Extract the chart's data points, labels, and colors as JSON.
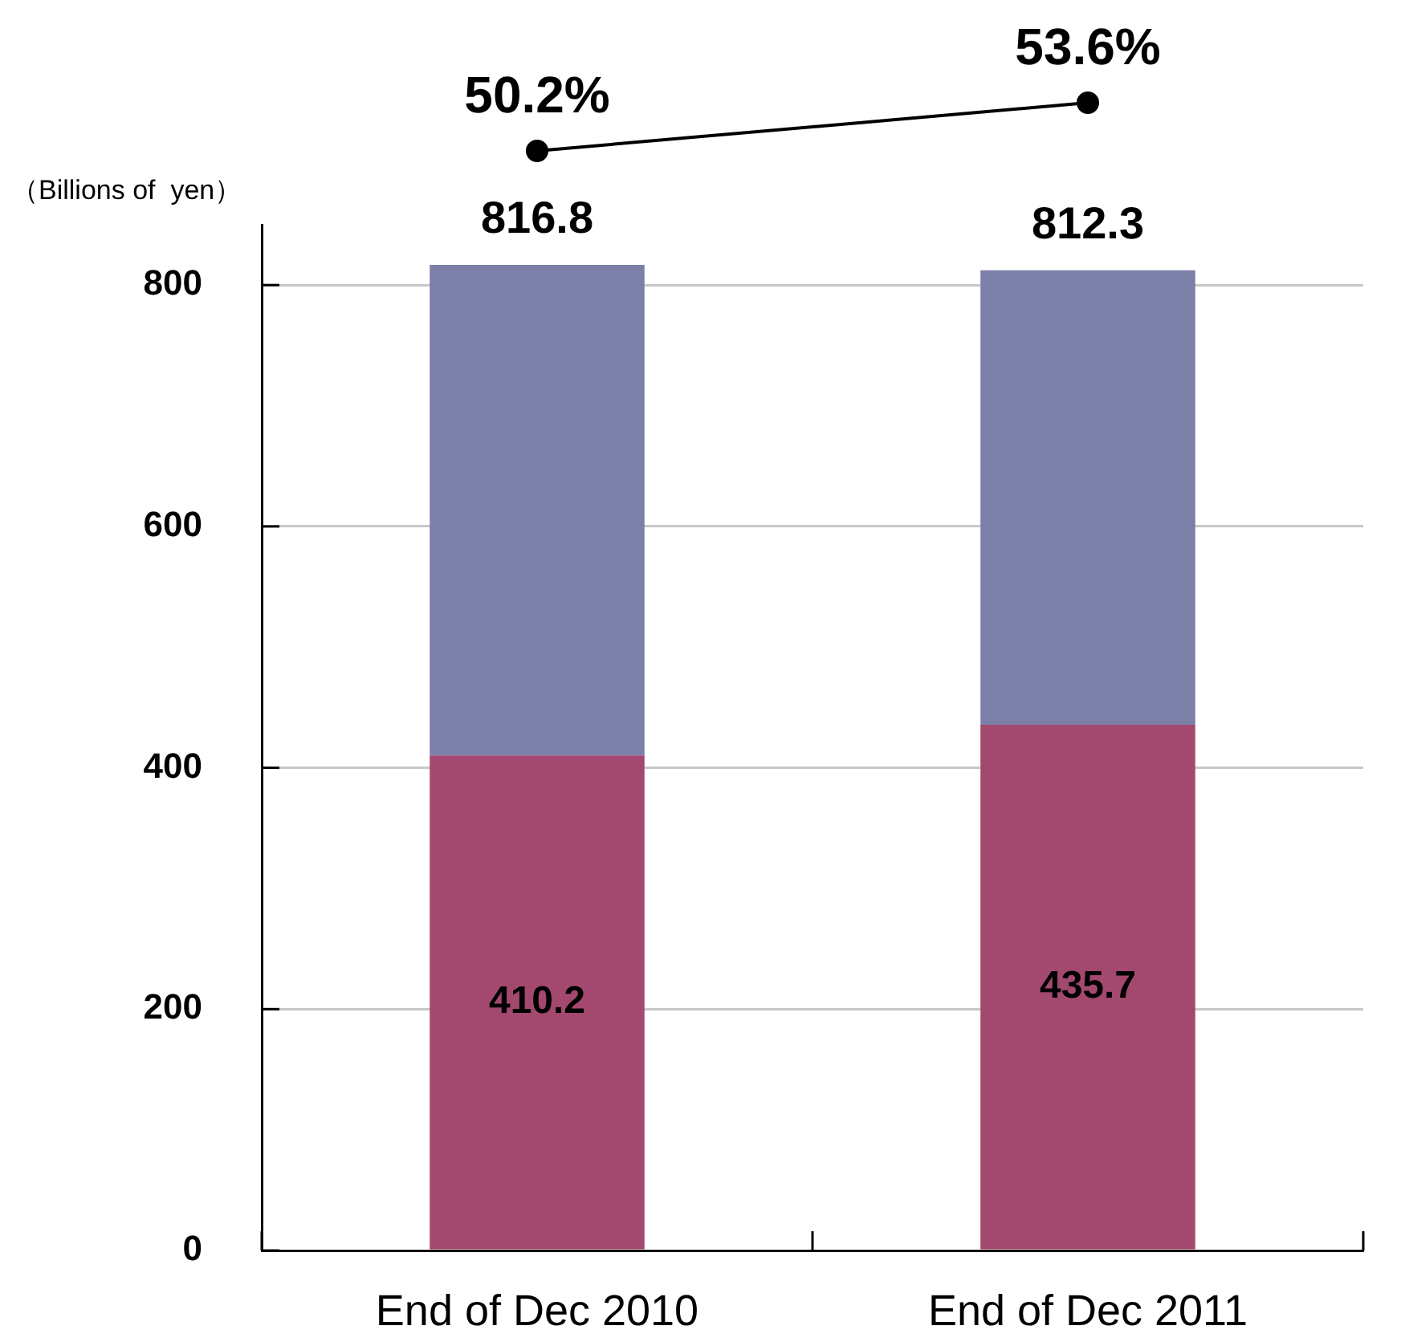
{
  "chart_data": [
    {
      "type": "line",
      "categories": [
        null,
        null
      ],
      "series": [
        {
          "color": "#000000",
          "values": [
            50.2,
            53.6
          ],
          "value_labels": [
            "50.2%",
            "53.6%"
          ]
        }
      ],
      "marker": "circle",
      "line_style": "solid"
    },
    {
      "type": "bar",
      "stacked": true,
      "ylabel": "（Billions of  yen）",
      "categories": [
        "End of Dec 2010",
        "End of Dec 2011"
      ],
      "series": [
        {
          "color": "#a3496f",
          "values": [
            410.2,
            435.7
          ],
          "value_labels": [
            "410.2",
            "435.7"
          ]
        },
        {
          "color": "#7c7fa8",
          "values": [
            406.6,
            376.6
          ]
        }
      ],
      "totals": [
        "816.8",
        "812.3"
      ],
      "ylim": [
        0,
        850
      ],
      "yticks": [
        0,
        200,
        400,
        600,
        800
      ],
      "grid": "y"
    }
  ]
}
